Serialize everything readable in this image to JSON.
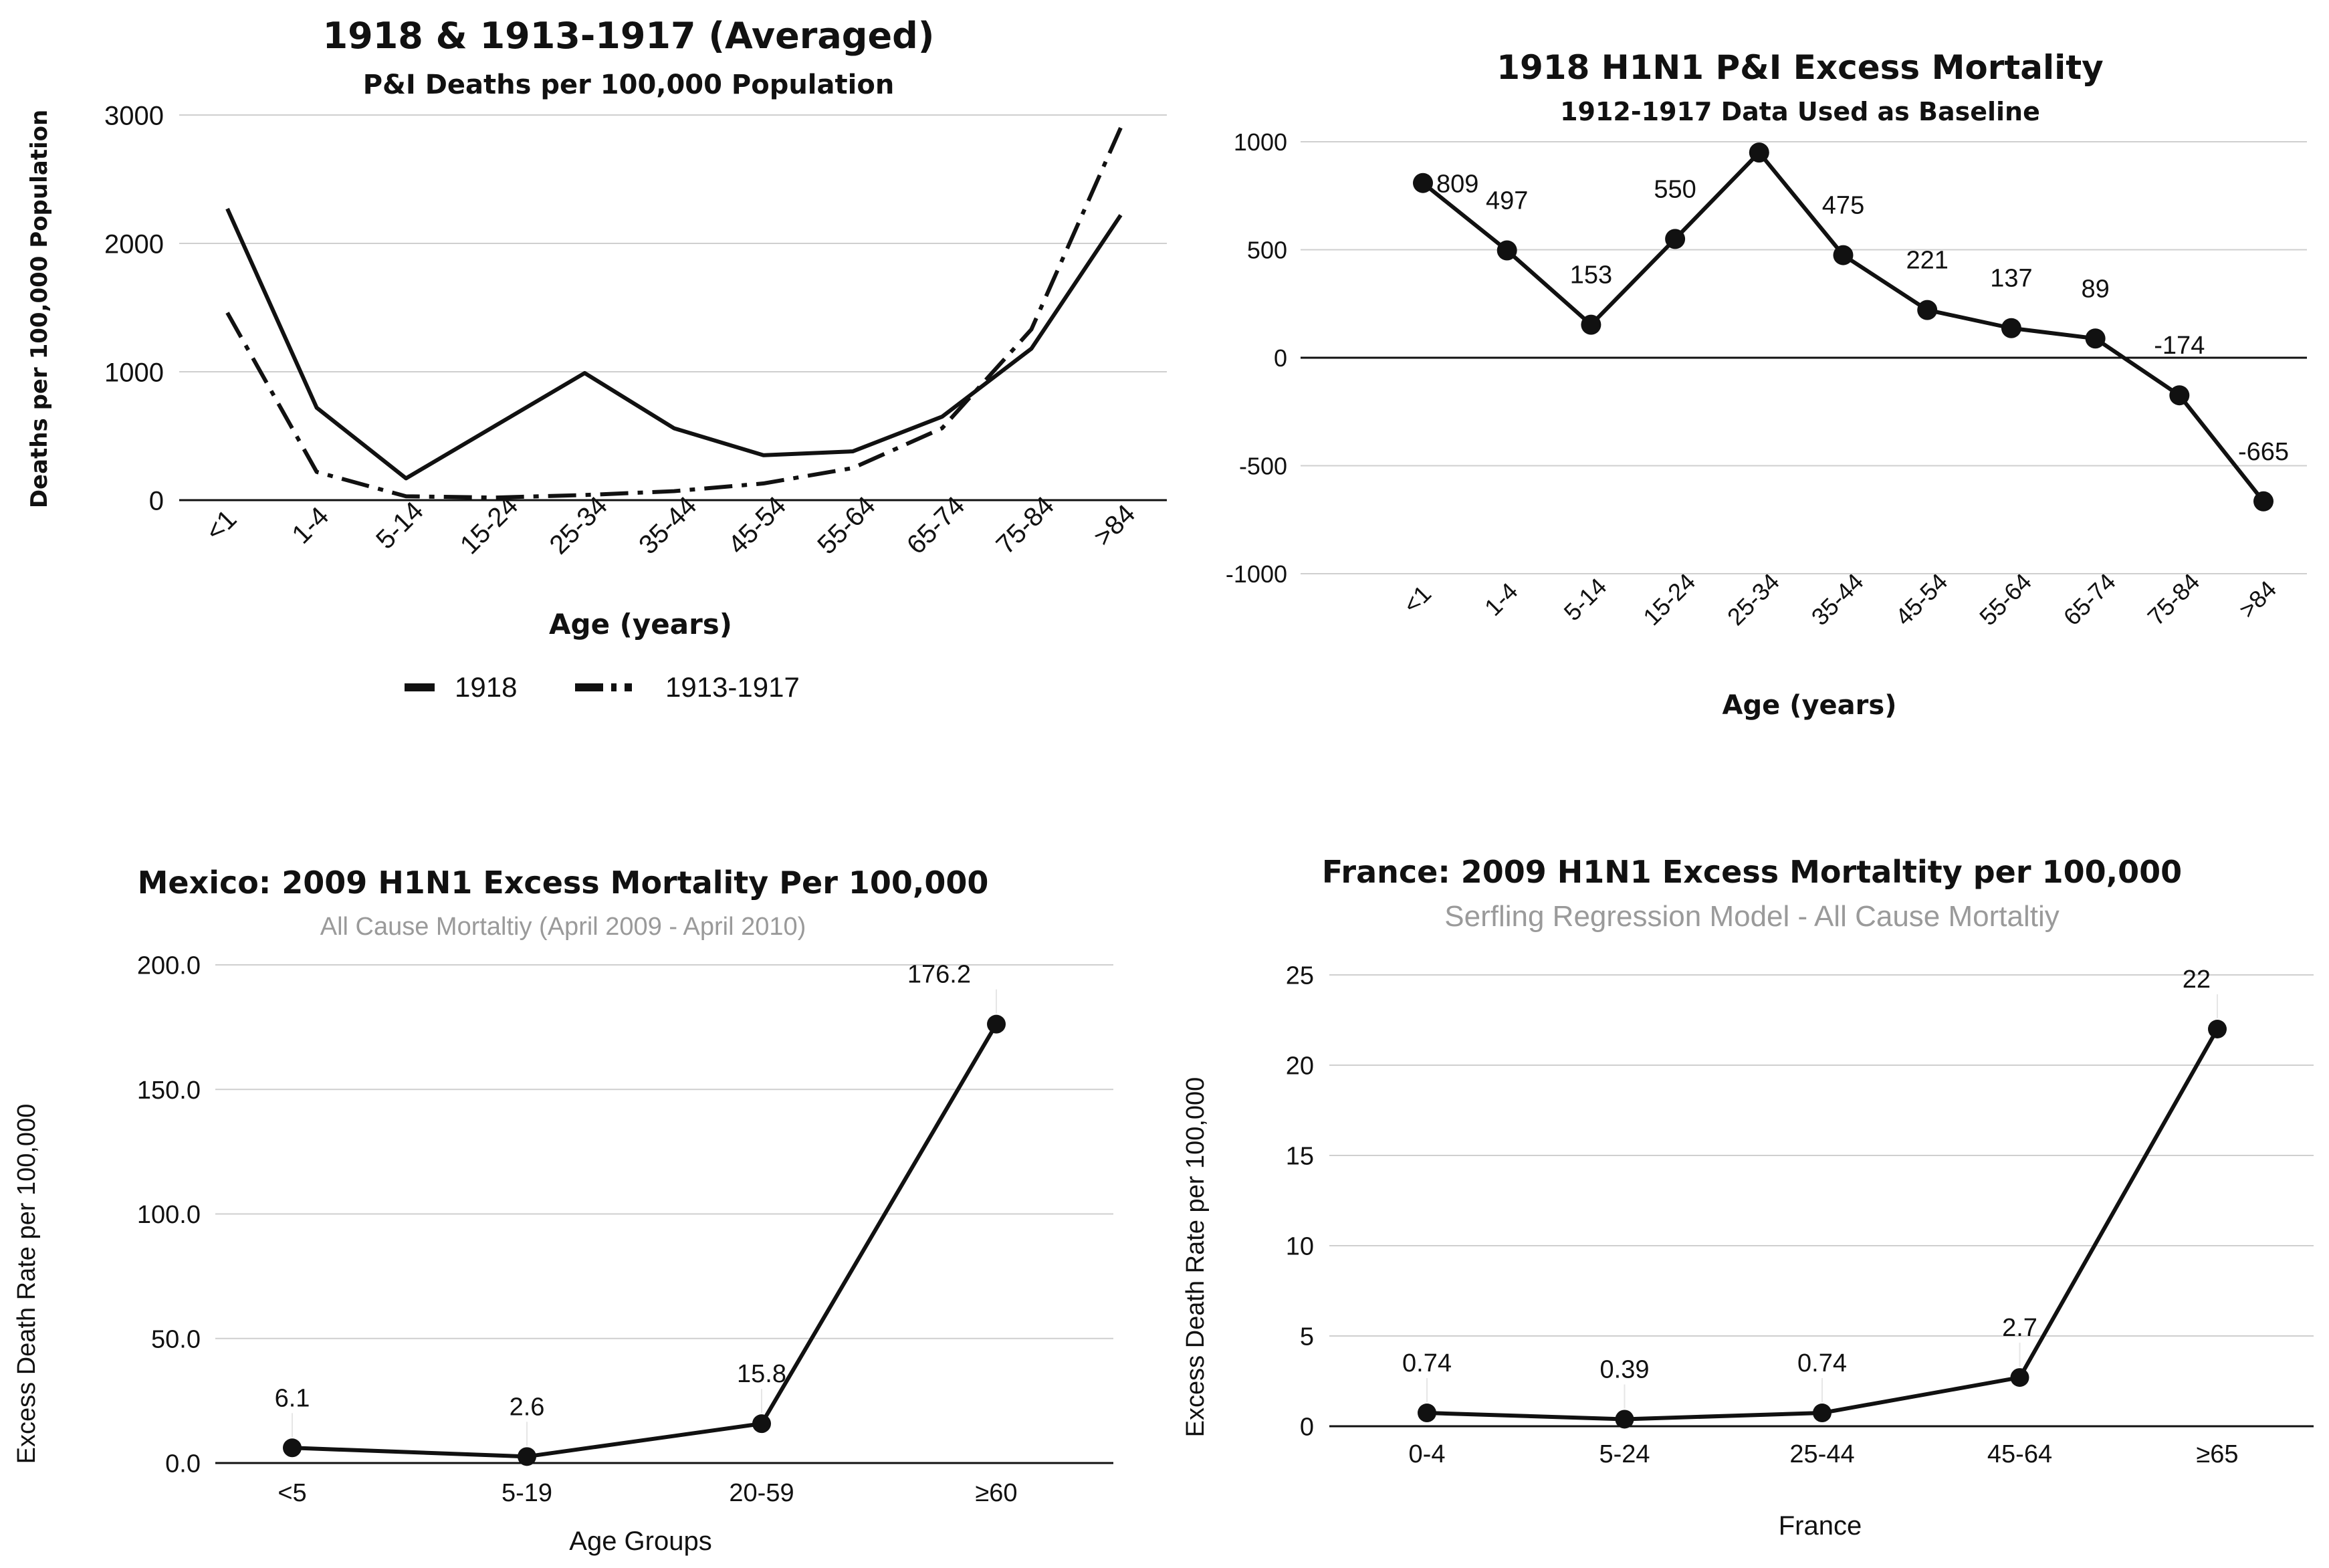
{
  "chart_data": [
    {
      "id": "c1",
      "type": "line",
      "title": "1918 & 1913-1917 (Averaged)",
      "subtitle": "P&I Deaths per 100,000 Population",
      "xlabel": "Age (years)",
      "ylabel": "Deaths per 100,000 Population",
      "categories": [
        "<1",
        "1-4",
        "5-14",
        "15-24",
        "25-34",
        "35-44",
        "45-54",
        "55-64",
        "65-74",
        "75-84",
        ">84"
      ],
      "ylim": [
        0,
        3000
      ],
      "yticks": [
        "0",
        "1000",
        "2000",
        "3000"
      ],
      "grid": true,
      "legend": "bottom",
      "series": [
        {
          "name": "1918",
          "style": "solid",
          "values": [
            2270,
            720,
            170,
            580,
            990,
            560,
            350,
            380,
            650,
            1180,
            2220
          ]
        },
        {
          "name": "1913-1917",
          "style": "dashdot",
          "values": [
            1460,
            220,
            30,
            20,
            40,
            70,
            130,
            250,
            560,
            1330,
            2900
          ]
        }
      ]
    },
    {
      "id": "c2",
      "type": "line",
      "title": "1918 H1N1 P&I Excess Mortality",
      "subtitle": "1912-1917 Data Used as Baseline",
      "xlabel": "Age (years)",
      "ylabel": "",
      "categories": [
        "<1",
        "1-4",
        "5-14",
        "15-24",
        "25-34",
        "35-44",
        "45-54",
        "55-64",
        "65-74",
        "75-84",
        ">84"
      ],
      "ylim": [
        -1000,
        1000
      ],
      "yticks": [
        "-1000",
        "-500",
        "0",
        "500",
        "1000"
      ],
      "grid": true,
      "series": [
        {
          "name": "Excess Mortality",
          "values": [
            809,
            497,
            153,
            550,
            950,
            475,
            221,
            137,
            89,
            -174,
            -665
          ],
          "labels": [
            "809",
            "497",
            "153",
            "550",
            "",
            "475",
            "221",
            "137",
            "89",
            "-174",
            "-665"
          ]
        }
      ]
    },
    {
      "id": "c3",
      "type": "line",
      "title": "Mexico: 2009 H1N1 Excess Mortality Per 100,000",
      "subtitle": "All Cause Mortaltiy (April 2009 - April 2010)",
      "xlabel": "Age Groups",
      "ylabel": "Excess Death Rate per 100,000",
      "categories": [
        "<5",
        "5-19",
        "20-59",
        "≥60"
      ],
      "ylim": [
        0,
        200
      ],
      "yticks": [
        "0.0",
        "50.0",
        "100.0",
        "150.0",
        "200.0"
      ],
      "grid": true,
      "series": [
        {
          "name": "Mexico",
          "values": [
            6.1,
            2.6,
            15.8,
            176.2
          ],
          "labels": [
            "6.1",
            "2.6",
            "15.8",
            "176.2"
          ]
        }
      ]
    },
    {
      "id": "c4",
      "type": "line",
      "title": "France: 2009 H1N1 Excess Mortaltity per 100,000",
      "subtitle": "Serfling Regression Model - All Cause Mortaltiy",
      "xlabel": "France",
      "ylabel": "Excess Death Rate per 100,000",
      "categories": [
        "0-4",
        "5-24",
        "25-44",
        "45-64",
        "≥65"
      ],
      "ylim": [
        0,
        25
      ],
      "yticks": [
        "0",
        "5",
        "10",
        "15",
        "20",
        "25"
      ],
      "grid": true,
      "series": [
        {
          "name": "France",
          "values": [
            0.74,
            0.39,
            0.74,
            2.7,
            22
          ],
          "labels": [
            "0.74",
            "0.39",
            "0.74",
            "2.7",
            "22"
          ]
        }
      ]
    }
  ]
}
